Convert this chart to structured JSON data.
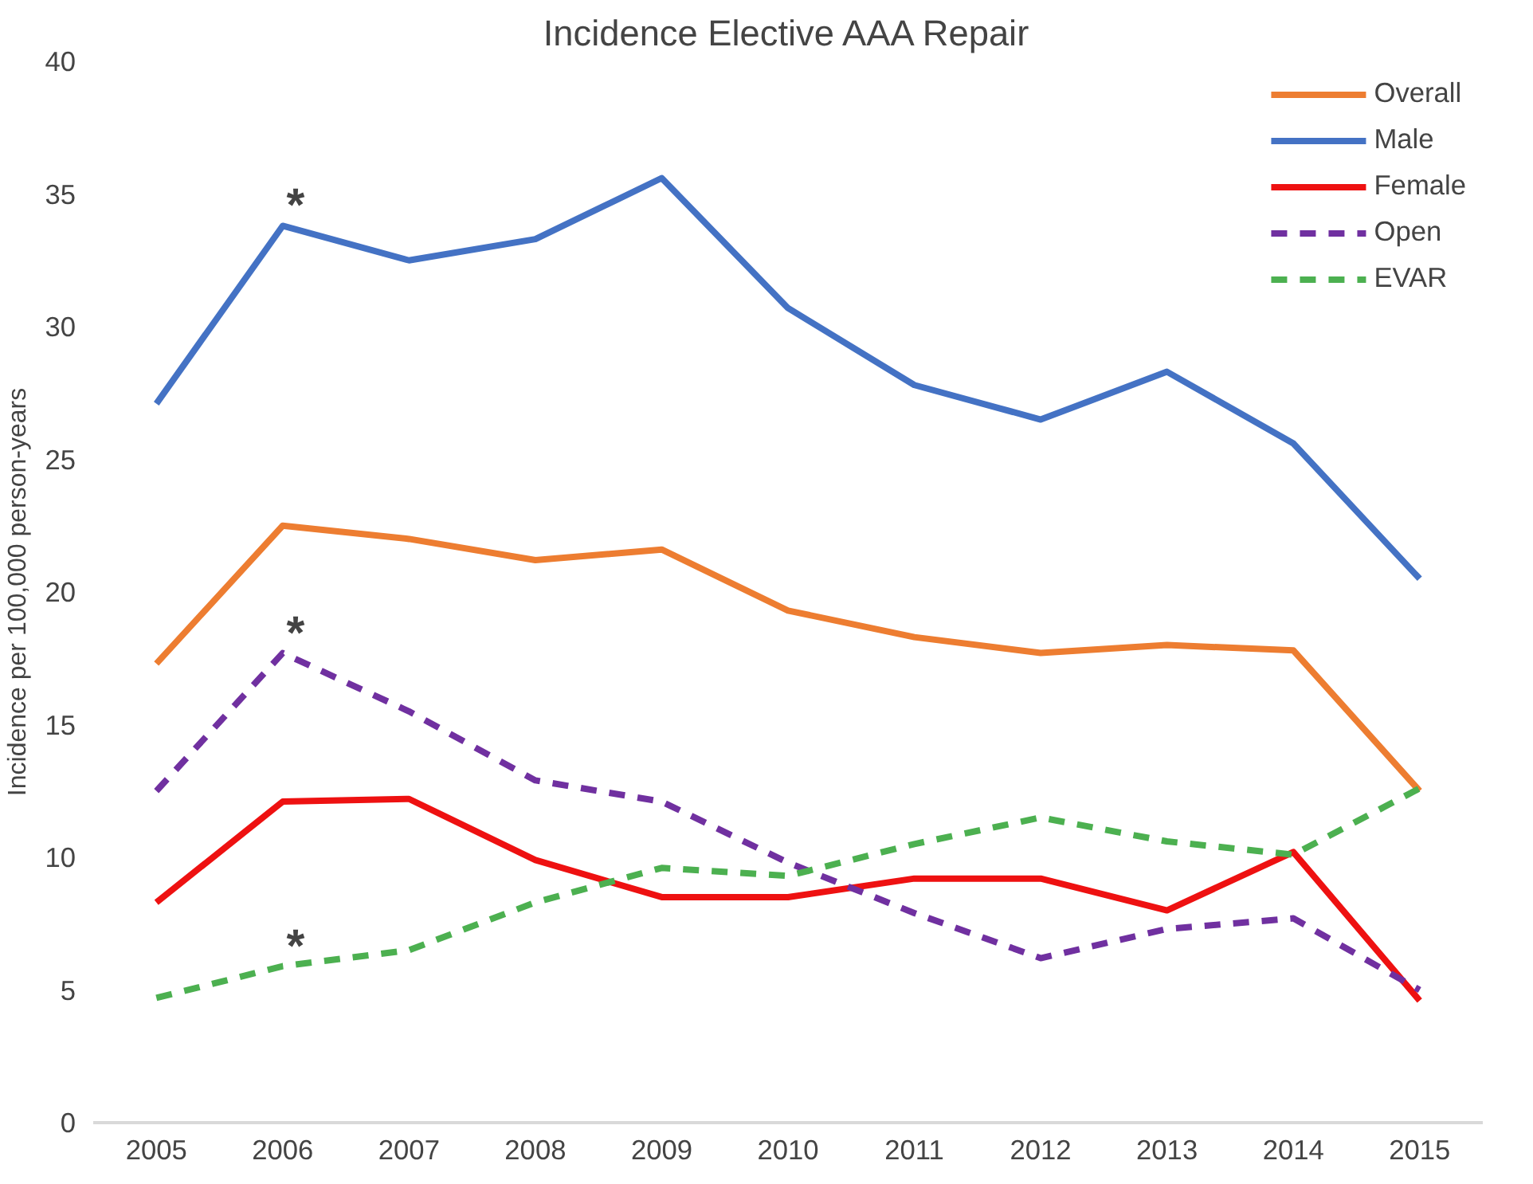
{
  "chart_data": {
    "type": "line",
    "title": "Incidence Elective AAA Repair",
    "ylabel": "Incidence per 100,000 person-years",
    "categories": [
      "2005",
      "2006",
      "2007",
      "2008",
      "2009",
      "2010",
      "2011",
      "2012",
      "2013",
      "2014",
      "2015"
    ],
    "ylim": [
      0,
      40
    ],
    "yticks": [
      0,
      5,
      10,
      15,
      20,
      25,
      30,
      35,
      40
    ],
    "grid": false,
    "legend": "top right",
    "series": [
      {
        "name": "Overall",
        "color": "#ed7d31",
        "line_style": "solid",
        "values": [
          17.3,
          22.5,
          22.0,
          21.2,
          21.6,
          19.3,
          18.3,
          17.7,
          18.0,
          17.8,
          12.5
        ]
      },
      {
        "name": "Male",
        "color": "#4472c4",
        "line_style": "solid",
        "values": [
          27.1,
          33.8,
          32.5,
          33.3,
          35.6,
          30.7,
          27.8,
          26.5,
          28.3,
          25.6,
          20.5
        ]
      },
      {
        "name": "Female",
        "color": "#ee1111",
        "line_style": "solid",
        "values": [
          8.3,
          12.1,
          12.2,
          9.9,
          8.5,
          8.5,
          9.2,
          9.2,
          8.0,
          10.2,
          4.6
        ]
      },
      {
        "name": "Open",
        "color": "#7030a0",
        "line_style": "dashed",
        "values": [
          12.5,
          17.7,
          15.5,
          12.9,
          12.1,
          9.8,
          7.9,
          6.2,
          7.3,
          7.7,
          5.0
        ]
      },
      {
        "name": "EVAR",
        "color": "#4cb050",
        "line_style": "dashed",
        "values": [
          4.7,
          5.9,
          6.5,
          8.3,
          9.6,
          9.3,
          10.5,
          11.5,
          10.6,
          10.1,
          12.6
        ]
      }
    ],
    "annotations": [
      {
        "text": "*",
        "x": "2006",
        "y": 33.8
      },
      {
        "text": "*",
        "x": "2006",
        "y": 17.7
      },
      {
        "text": "*",
        "x": "2006",
        "y": 5.9
      }
    ]
  }
}
